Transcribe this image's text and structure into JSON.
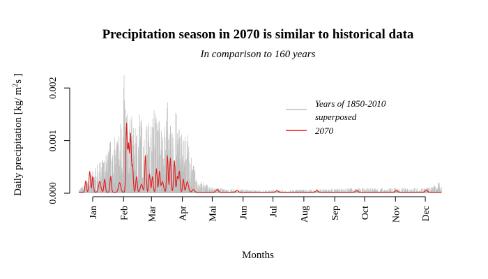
{
  "chart_data": {
    "type": "line",
    "title": "Precipitation season in 2070 is similar to historical data",
    "subtitle": "In comparison to 160 years",
    "xlabel": "Months",
    "ylabel": "Daily precipitation [kg/ m^2 s ]",
    "ylabel_parts": {
      "prefix": "Daily precipitation [kg/ m",
      "sup1": "2",
      "mid": "s",
      "suffix": " ]"
    },
    "x_range_days": [
      1,
      365
    ],
    "ylim": [
      0,
      0.0024
    ],
    "y_ticks": [
      "0.000",
      "0.001",
      "0.002"
    ],
    "y_tick_values": [
      0,
      0.001,
      0.002
    ],
    "x_ticks": [
      "Jan",
      "Feb",
      "Mar",
      "Apr",
      "Mai",
      "Jun",
      "Jul",
      "Aug",
      "Sep",
      "Oct",
      "Nov",
      "Dec"
    ],
    "legend_position": "top-right",
    "series": [
      {
        "name": "Years of 1850-2010 superposed",
        "legend_lines": [
          "Years of 1850-2010",
          "superposed"
        ],
        "color": "#bebebe",
        "envelope_points": [
          [
            1,
            8e-05
          ],
          [
            8,
            0.0002
          ],
          [
            15,
            0.00045
          ],
          [
            22,
            0.0006
          ],
          [
            29,
            0.0008
          ],
          [
            33,
            0.0011
          ],
          [
            36,
            0.001
          ],
          [
            40,
            0.0013
          ],
          [
            44,
            0.00155
          ],
          [
            47,
            0.0024
          ],
          [
            50,
            0.0014
          ],
          [
            54,
            0.0015
          ],
          [
            58,
            0.0012
          ],
          [
            62,
            0.0017
          ],
          [
            66,
            0.0012
          ],
          [
            70,
            0.0014
          ],
          [
            74,
            0.0015
          ],
          [
            78,
            0.0017
          ],
          [
            82,
            0.0015
          ],
          [
            86,
            0.0012
          ],
          [
            90,
            0.0019
          ],
          [
            94,
            0.0011
          ],
          [
            98,
            0.0016
          ],
          [
            102,
            0.0014
          ],
          [
            106,
            0.0012
          ],
          [
            110,
            0.0011
          ],
          [
            115,
            0.0006
          ],
          [
            120,
            0.0003
          ],
          [
            126,
            0.0002
          ],
          [
            132,
            0.00015
          ],
          [
            140,
            0.0001
          ],
          [
            150,
            8e-05
          ],
          [
            160,
            8e-05
          ],
          [
            180,
            6e-05
          ],
          [
            200,
            6e-05
          ],
          [
            220,
            7e-05
          ],
          [
            240,
            8e-05
          ],
          [
            260,
            9e-05
          ],
          [
            280,
            0.0001
          ],
          [
            300,
            0.0001
          ],
          [
            320,
            0.0001
          ],
          [
            340,
            0.0001
          ],
          [
            355,
            0.00012
          ],
          [
            365,
            0.00025
          ]
        ]
      },
      {
        "name": "2070",
        "color": "#e31a1c",
        "peaks": [
          [
            8,
            0.00022
          ],
          [
            12,
            0.0004
          ],
          [
            15,
            0.0003
          ],
          [
            22,
            0.0002
          ],
          [
            27,
            0.00025
          ],
          [
            33,
            0.0003
          ],
          [
            42,
            0.00018
          ],
          [
            49,
            0.0013
          ],
          [
            51,
            0.0009
          ],
          [
            53,
            0.0011
          ],
          [
            55,
            0.0005
          ],
          [
            59,
            0.0003
          ],
          [
            64,
            0.00015
          ],
          [
            68,
            0.0007
          ],
          [
            72,
            0.00035
          ],
          [
            75,
            0.0003
          ],
          [
            79,
            0.00045
          ],
          [
            82,
            0.0004
          ],
          [
            85,
            0.0002
          ],
          [
            90,
            0.0007
          ],
          [
            93,
            0.00065
          ],
          [
            97,
            0.0006
          ],
          [
            100,
            0.0003
          ],
          [
            102,
            0.0004
          ],
          [
            106,
            0.00025
          ],
          [
            110,
            0.0002
          ],
          [
            116,
            5e-05
          ],
          [
            140,
            5e-05
          ],
          [
            160,
            3e-05
          ],
          [
            200,
            3e-05
          ],
          [
            240,
            3e-05
          ],
          [
            280,
            3e-05
          ],
          [
            320,
            3e-05
          ],
          [
            350,
            4e-05
          ]
        ]
      }
    ]
  }
}
